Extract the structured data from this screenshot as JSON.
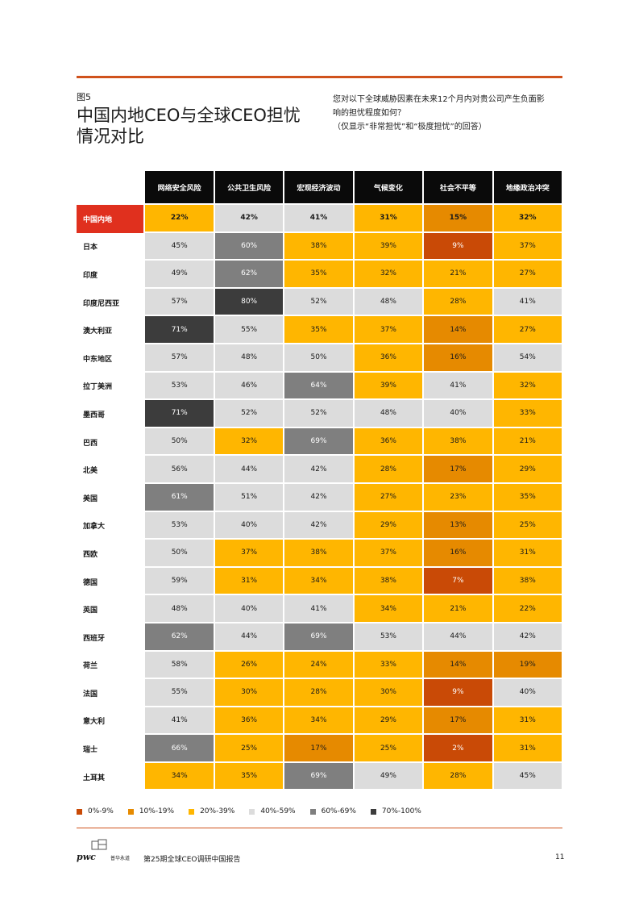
{
  "figure_label": "图5",
  "title_lines": [
    "中国内地CEO与全球CEO担忧",
    "情况对比"
  ],
  "question_lines": [
    "您对以下全球威胁因素在未来12个月内对贵公司产生负面影",
    "响的担忧程度如何？",
    "（仅显示“非常担忧”和“极度担忧”的回答）"
  ],
  "colors": {
    "c0_9": "#c94a06",
    "c10_19": "#e68a00",
    "c20_39": "#ffb600",
    "c40_59": "#dcdcdc",
    "c60_69": "#7f7f7f",
    "c70_100": "#3c3c3c",
    "highlight": "#e0301e",
    "rule": "#d0521c"
  },
  "table": {
    "columns": [
      "网络安全风险",
      "公共卫生风险",
      "宏观经济波动",
      "气候变化",
      "社会不平等",
      "地缘政治冲突"
    ],
    "rows": [
      {
        "label": "中国内地",
        "values": [
          22,
          42,
          41,
          31,
          15,
          32
        ],
        "highlight": true
      },
      {
        "label": "日本",
        "values": [
          45,
          60,
          38,
          39,
          9,
          37
        ]
      },
      {
        "label": "印度",
        "values": [
          49,
          62,
          35,
          32,
          21,
          27
        ]
      },
      {
        "label": "印度尼西亚",
        "values": [
          57,
          80,
          52,
          48,
          28,
          41
        ]
      },
      {
        "label": "澳大利亚",
        "values": [
          71,
          55,
          35,
          37,
          14,
          27
        ]
      },
      {
        "label": "中东地区",
        "values": [
          57,
          48,
          50,
          36,
          16,
          54
        ]
      },
      {
        "label": "拉丁美洲",
        "values": [
          53,
          46,
          64,
          39,
          41,
          32
        ]
      },
      {
        "label": "墨西哥",
        "values": [
          71,
          52,
          52,
          48,
          40,
          33
        ]
      },
      {
        "label": "巴西",
        "values": [
          50,
          32,
          69,
          36,
          38,
          21
        ]
      },
      {
        "label": "北美",
        "values": [
          56,
          44,
          42,
          28,
          17,
          29
        ]
      },
      {
        "label": "美国",
        "values": [
          61,
          51,
          42,
          27,
          23,
          35
        ]
      },
      {
        "label": "加拿大",
        "values": [
          53,
          40,
          42,
          29,
          13,
          25
        ]
      },
      {
        "label": "西欧",
        "values": [
          50,
          37,
          38,
          37,
          16,
          31
        ]
      },
      {
        "label": "德国",
        "values": [
          59,
          31,
          34,
          38,
          7,
          38
        ]
      },
      {
        "label": "英国",
        "values": [
          48,
          40,
          41,
          34,
          21,
          22
        ]
      },
      {
        "label": "西班牙",
        "values": [
          62,
          44,
          69,
          53,
          44,
          42
        ]
      },
      {
        "label": "荷兰",
        "values": [
          58,
          26,
          24,
          33,
          14,
          19
        ]
      },
      {
        "label": "法国",
        "values": [
          55,
          30,
          28,
          30,
          9,
          40
        ]
      },
      {
        "label": "意大利",
        "values": [
          41,
          36,
          34,
          29,
          17,
          31
        ]
      },
      {
        "label": "瑞士",
        "values": [
          66,
          25,
          17,
          25,
          2,
          31
        ]
      },
      {
        "label": "土耳其",
        "values": [
          34,
          35,
          69,
          49,
          28,
          45
        ]
      }
    ]
  },
  "legend": [
    {
      "label": "0%-9%",
      "color_key": "c0_9"
    },
    {
      "label": "10%-19%",
      "color_key": "c10_19"
    },
    {
      "label": "20%-39%",
      "color_key": "c20_39"
    },
    {
      "label": "40%-59%",
      "color_key": "c40_59"
    },
    {
      "label": "60%-69%",
      "color_key": "c60_69"
    },
    {
      "label": "70%-100%",
      "color_key": "c70_100"
    }
  ],
  "footer": {
    "logo_word": "pwc",
    "logo_tagline": "普华永道",
    "report_title": "第25期全球CEO调研中国报告",
    "page_number": "11"
  }
}
